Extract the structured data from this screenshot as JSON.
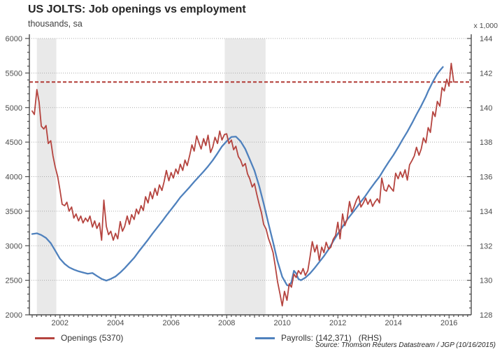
{
  "header": {
    "title": "US JOLTS: Job openings vs employment",
    "subtitle": "thousands, sa",
    "right_axis_unit": "x 1,000"
  },
  "legend": [
    {
      "label": "Openings (5370)",
      "color": "#b5443f"
    },
    {
      "label": "Payrolls: (142,371)   (RHS)",
      "color": "#4f81bd"
    }
  ],
  "source": "Source: Thomson Reuters Datastream / JGP (10/16/2015)",
  "chart_data": {
    "type": "line",
    "title": "US JOLTS: Job openings vs employment",
    "subtitle": "thousands, sa",
    "legend_position": "bottom",
    "grid": "horizontal-dotted",
    "x_axis": {
      "min": 2000.9,
      "max": 2016.8,
      "tick_labels": [
        2002,
        2004,
        2006,
        2008,
        2010,
        2012,
        2014,
        2016
      ],
      "minor_step_years": 0.1667
    },
    "left_axis": {
      "label": "thousands, sa",
      "min": 2000,
      "max": 6000,
      "ticks": [
        2000,
        2500,
        3000,
        3500,
        4000,
        4500,
        5000,
        5500,
        6000
      ],
      "minor_step": 100
    },
    "right_axis": {
      "label": "x 1,000",
      "min": 128,
      "max": 144,
      "ticks": [
        128,
        130,
        132,
        134,
        136,
        138,
        140,
        142,
        144
      ],
      "minor_step": 0.4
    },
    "reference_line": {
      "value": 5370,
      "axis": "left",
      "color": "#b23b35",
      "style": "dashed"
    },
    "recession_bands": {
      "color": "#e9e9e9",
      "spans": [
        [
          2001.17,
          2001.87
        ],
        [
          2007.93,
          2009.4
        ]
      ]
    },
    "series": [
      {
        "name": "Payrolls: (142,371) (RHS)",
        "axis": "right",
        "color": "#4f81bd",
        "width": 2.3,
        "points": [
          [
            2001.0,
            132.68
          ],
          [
            2001.17,
            132.72
          ],
          [
            2001.33,
            132.62
          ],
          [
            2001.5,
            132.45
          ],
          [
            2001.67,
            132.15
          ],
          [
            2001.83,
            131.72
          ],
          [
            2002.0,
            131.25
          ],
          [
            2002.17,
            130.95
          ],
          [
            2002.33,
            130.75
          ],
          [
            2002.5,
            130.62
          ],
          [
            2002.67,
            130.52
          ],
          [
            2002.83,
            130.45
          ],
          [
            2003.0,
            130.38
          ],
          [
            2003.17,
            130.42
          ],
          [
            2003.33,
            130.25
          ],
          [
            2003.5,
            130.08
          ],
          [
            2003.67,
            129.98
          ],
          [
            2003.83,
            130.08
          ],
          [
            2004.0,
            130.22
          ],
          [
            2004.17,
            130.45
          ],
          [
            2004.33,
            130.7
          ],
          [
            2004.5,
            131.0
          ],
          [
            2004.67,
            131.3
          ],
          [
            2004.83,
            131.65
          ],
          [
            2005.0,
            132.0
          ],
          [
            2005.17,
            132.35
          ],
          [
            2005.33,
            132.7
          ],
          [
            2005.5,
            133.05
          ],
          [
            2005.67,
            133.4
          ],
          [
            2005.83,
            133.75
          ],
          [
            2006.0,
            134.1
          ],
          [
            2006.17,
            134.45
          ],
          [
            2006.33,
            134.8
          ],
          [
            2006.5,
            135.1
          ],
          [
            2006.67,
            135.4
          ],
          [
            2006.83,
            135.7
          ],
          [
            2007.0,
            136.0
          ],
          [
            2007.17,
            136.3
          ],
          [
            2007.33,
            136.6
          ],
          [
            2007.5,
            136.95
          ],
          [
            2007.67,
            137.35
          ],
          [
            2007.83,
            137.75
          ],
          [
            2008.0,
            138.05
          ],
          [
            2008.17,
            138.3
          ],
          [
            2008.33,
            138.32
          ],
          [
            2008.5,
            138.05
          ],
          [
            2008.67,
            137.6
          ],
          [
            2008.83,
            137.0
          ],
          [
            2009.0,
            136.35
          ],
          [
            2009.17,
            135.45
          ],
          [
            2009.33,
            134.45
          ],
          [
            2009.5,
            133.3
          ],
          [
            2009.67,
            132.2
          ],
          [
            2009.83,
            131.1
          ],
          [
            2010.0,
            130.2
          ],
          [
            2010.17,
            129.72
          ],
          [
            2010.25,
            129.68
          ],
          [
            2010.33,
            129.9
          ],
          [
            2010.42,
            130.55
          ],
          [
            2010.5,
            130.4
          ],
          [
            2010.58,
            130.08
          ],
          [
            2010.67,
            130.0
          ],
          [
            2010.83,
            130.15
          ],
          [
            2011.0,
            130.4
          ],
          [
            2011.17,
            130.72
          ],
          [
            2011.33,
            131.05
          ],
          [
            2011.5,
            131.4
          ],
          [
            2011.67,
            131.8
          ],
          [
            2011.83,
            132.25
          ],
          [
            2012.0,
            132.7
          ],
          [
            2012.17,
            133.1
          ],
          [
            2012.33,
            133.5
          ],
          [
            2012.5,
            133.85
          ],
          [
            2012.67,
            134.2
          ],
          [
            2012.83,
            134.55
          ],
          [
            2013.0,
            134.9
          ],
          [
            2013.17,
            135.3
          ],
          [
            2013.33,
            135.65
          ],
          [
            2013.5,
            136.0
          ],
          [
            2013.67,
            136.45
          ],
          [
            2013.83,
            136.85
          ],
          [
            2014.0,
            137.25
          ],
          [
            2014.17,
            137.7
          ],
          [
            2014.33,
            138.15
          ],
          [
            2014.5,
            138.6
          ],
          [
            2014.67,
            139.1
          ],
          [
            2014.83,
            139.6
          ],
          [
            2015.0,
            140.1
          ],
          [
            2015.17,
            140.65
          ],
          [
            2015.25,
            140.95
          ],
          [
            2015.42,
            141.5
          ],
          [
            2015.58,
            141.95
          ],
          [
            2015.7,
            142.2
          ],
          [
            2015.78,
            142.35
          ]
        ]
      },
      {
        "name": "Openings (5370)",
        "axis": "left",
        "color": "#b5443f",
        "width": 1.8,
        "points": [
          [
            2001.0,
            4950
          ],
          [
            2001.08,
            4900
          ],
          [
            2001.17,
            5260
          ],
          [
            2001.25,
            5080
          ],
          [
            2001.33,
            4730
          ],
          [
            2001.42,
            4690
          ],
          [
            2001.5,
            4740
          ],
          [
            2001.58,
            4480
          ],
          [
            2001.67,
            4520
          ],
          [
            2001.75,
            4300
          ],
          [
            2001.83,
            4140
          ],
          [
            2001.92,
            4000
          ],
          [
            2002.0,
            3810
          ],
          [
            2002.08,
            3600
          ],
          [
            2002.17,
            3580
          ],
          [
            2002.25,
            3630
          ],
          [
            2002.33,
            3500
          ],
          [
            2002.42,
            3560
          ],
          [
            2002.5,
            3400
          ],
          [
            2002.58,
            3460
          ],
          [
            2002.67,
            3360
          ],
          [
            2002.75,
            3430
          ],
          [
            2002.83,
            3330
          ],
          [
            2002.92,
            3400
          ],
          [
            2003.0,
            3350
          ],
          [
            2003.08,
            3430
          ],
          [
            2003.17,
            3270
          ],
          [
            2003.25,
            3360
          ],
          [
            2003.33,
            3250
          ],
          [
            2003.42,
            3330
          ],
          [
            2003.5,
            3080
          ],
          [
            2003.58,
            3660
          ],
          [
            2003.67,
            3280
          ],
          [
            2003.75,
            3160
          ],
          [
            2003.83,
            3210
          ],
          [
            2003.92,
            3080
          ],
          [
            2004.0,
            3180
          ],
          [
            2004.08,
            3100
          ],
          [
            2004.17,
            3350
          ],
          [
            2004.25,
            3210
          ],
          [
            2004.33,
            3280
          ],
          [
            2004.42,
            3430
          ],
          [
            2004.5,
            3310
          ],
          [
            2004.58,
            3450
          ],
          [
            2004.67,
            3380
          ],
          [
            2004.75,
            3530
          ],
          [
            2004.83,
            3460
          ],
          [
            2004.92,
            3580
          ],
          [
            2005.0,
            3510
          ],
          [
            2005.08,
            3710
          ],
          [
            2005.17,
            3620
          ],
          [
            2005.25,
            3780
          ],
          [
            2005.33,
            3680
          ],
          [
            2005.42,
            3830
          ],
          [
            2005.5,
            3730
          ],
          [
            2005.58,
            3880
          ],
          [
            2005.67,
            3800
          ],
          [
            2005.75,
            3930
          ],
          [
            2005.83,
            4090
          ],
          [
            2005.92,
            3940
          ],
          [
            2006.0,
            4060
          ],
          [
            2006.08,
            3980
          ],
          [
            2006.17,
            4110
          ],
          [
            2006.25,
            4040
          ],
          [
            2006.33,
            4180
          ],
          [
            2006.42,
            4090
          ],
          [
            2006.5,
            4240
          ],
          [
            2006.58,
            4160
          ],
          [
            2006.67,
            4310
          ],
          [
            2006.75,
            4460
          ],
          [
            2006.83,
            4370
          ],
          [
            2006.92,
            4590
          ],
          [
            2007.0,
            4490
          ],
          [
            2007.08,
            4400
          ],
          [
            2007.17,
            4550
          ],
          [
            2007.25,
            4450
          ],
          [
            2007.33,
            4600
          ],
          [
            2007.42,
            4350
          ],
          [
            2007.5,
            4430
          ],
          [
            2007.58,
            4570
          ],
          [
            2007.67,
            4480
          ],
          [
            2007.75,
            4660
          ],
          [
            2007.83,
            4530
          ],
          [
            2007.92,
            4610
          ],
          [
            2008.0,
            4620
          ],
          [
            2008.08,
            4480
          ],
          [
            2008.17,
            4530
          ],
          [
            2008.25,
            4390
          ],
          [
            2008.33,
            4440
          ],
          [
            2008.42,
            4290
          ],
          [
            2008.5,
            4240
          ],
          [
            2008.58,
            4150
          ],
          [
            2008.67,
            4190
          ],
          [
            2008.75,
            4040
          ],
          [
            2008.83,
            3970
          ],
          [
            2008.92,
            3850
          ],
          [
            2009.0,
            3900
          ],
          [
            2009.08,
            3750
          ],
          [
            2009.17,
            3600
          ],
          [
            2009.25,
            3480
          ],
          [
            2009.33,
            3310
          ],
          [
            2009.42,
            3240
          ],
          [
            2009.5,
            3110
          ],
          [
            2009.58,
            3020
          ],
          [
            2009.67,
            2900
          ],
          [
            2009.75,
            2700
          ],
          [
            2009.83,
            2480
          ],
          [
            2009.92,
            2300
          ],
          [
            2010.0,
            2130
          ],
          [
            2010.08,
            2340
          ],
          [
            2010.17,
            2210
          ],
          [
            2010.25,
            2450
          ],
          [
            2010.33,
            2400
          ],
          [
            2010.42,
            2590
          ],
          [
            2010.5,
            2540
          ],
          [
            2010.58,
            2640
          ],
          [
            2010.67,
            2590
          ],
          [
            2010.75,
            2670
          ],
          [
            2010.83,
            2570
          ],
          [
            2010.92,
            2640
          ],
          [
            2011.0,
            2840
          ],
          [
            2011.08,
            3060
          ],
          [
            2011.17,
            2910
          ],
          [
            2011.25,
            3010
          ],
          [
            2011.33,
            2790
          ],
          [
            2011.42,
            2980
          ],
          [
            2011.5,
            2900
          ],
          [
            2011.58,
            3050
          ],
          [
            2011.67,
            2950
          ],
          [
            2011.75,
            2980
          ],
          [
            2011.83,
            3090
          ],
          [
            2011.92,
            3150
          ],
          [
            2012.0,
            3340
          ],
          [
            2012.08,
            3100
          ],
          [
            2012.17,
            3460
          ],
          [
            2012.25,
            3290
          ],
          [
            2012.33,
            3380
          ],
          [
            2012.42,
            3640
          ],
          [
            2012.5,
            3490
          ],
          [
            2012.58,
            3560
          ],
          [
            2012.67,
            3660
          ],
          [
            2012.75,
            3720
          ],
          [
            2012.83,
            3560
          ],
          [
            2012.92,
            3620
          ],
          [
            2013.0,
            3690
          ],
          [
            2013.08,
            3600
          ],
          [
            2013.17,
            3670
          ],
          [
            2013.25,
            3570
          ],
          [
            2013.33,
            3630
          ],
          [
            2013.42,
            3680
          ],
          [
            2013.5,
            3620
          ],
          [
            2013.58,
            3980
          ],
          [
            2013.67,
            3810
          ],
          [
            2013.75,
            3790
          ],
          [
            2013.83,
            3880
          ],
          [
            2013.92,
            3830
          ],
          [
            2014.0,
            3790
          ],
          [
            2014.08,
            4050
          ],
          [
            2014.17,
            3970
          ],
          [
            2014.25,
            4070
          ],
          [
            2014.33,
            3990
          ],
          [
            2014.42,
            4100
          ],
          [
            2014.5,
            3950
          ],
          [
            2014.58,
            4170
          ],
          [
            2014.67,
            4235
          ],
          [
            2014.75,
            4300
          ],
          [
            2014.83,
            4425
          ],
          [
            2014.92,
            4310
          ],
          [
            2015.0,
            4400
          ],
          [
            2015.08,
            4560
          ],
          [
            2015.17,
            4490
          ],
          [
            2015.25,
            4710
          ],
          [
            2015.33,
            4640
          ],
          [
            2015.42,
            4940
          ],
          [
            2015.5,
            4870
          ],
          [
            2015.58,
            5090
          ],
          [
            2015.67,
            5020
          ],
          [
            2015.75,
            5290
          ],
          [
            2015.83,
            5240
          ],
          [
            2015.92,
            5410
          ],
          [
            2016.0,
            5310
          ],
          [
            2016.08,
            5640
          ],
          [
            2016.17,
            5370
          ]
        ]
      }
    ]
  }
}
